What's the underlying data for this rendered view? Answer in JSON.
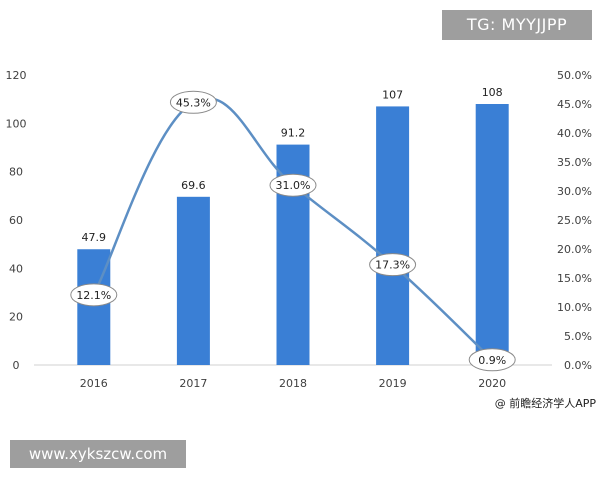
{
  "watermark_top": "TG: MYYJJPP",
  "watermark_bottom": "www.xykszcw.com",
  "source_note": "@ 前瞻经济学人APP",
  "colors": {
    "bar": "#3a7fd5",
    "line": "#5d8fc4",
    "axis_text": "#404040"
  },
  "chart_data": {
    "type": "bar",
    "categories": [
      "2016",
      "2017",
      "2018",
      "2019",
      "2020"
    ],
    "series": [
      {
        "type": "bar",
        "axis": "left",
        "values": [
          47.9,
          69.6,
          91.2,
          107,
          108
        ],
        "labels": [
          "47.9",
          "69.6",
          "91.2",
          "107",
          "108"
        ]
      },
      {
        "type": "line",
        "axis": "right",
        "values": [
          12.1,
          45.3,
          31.0,
          17.3,
          0.9
        ],
        "labels": [
          "12.1%",
          "45.3%",
          "31.0%",
          "17.3%",
          "0.9%"
        ]
      }
    ],
    "y_left": {
      "min": 0,
      "max": 120,
      "ticks": [
        "0",
        "20",
        "40",
        "60",
        "80",
        "100",
        "120"
      ]
    },
    "y_right": {
      "min": 0,
      "max": 50,
      "ticks": [
        "0.0%",
        "5.0%",
        "10.0%",
        "15.0%",
        "20.0%",
        "25.0%",
        "30.0%",
        "35.0%",
        "40.0%",
        "45.0%",
        "50.0%"
      ]
    },
    "grid": false,
    "legend": "none"
  }
}
